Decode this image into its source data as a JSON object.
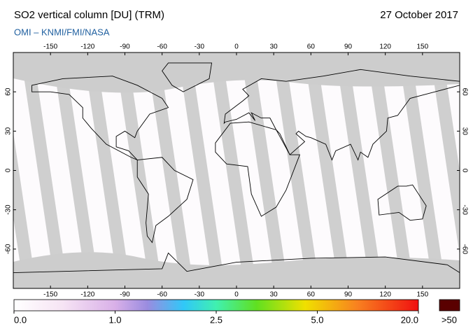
{
  "header": {
    "title": "SO2 vertical column [DU] (TRM)",
    "date": "27 October 2017",
    "source": "OMI  –  KNMI/FMI/NASA"
  },
  "map": {
    "xlim": [
      -180,
      180
    ],
    "ylim": [
      -90,
      90
    ],
    "lon_ticks": [
      -150,
      -120,
      -90,
      -60,
      -30,
      0,
      30,
      60,
      90,
      120,
      150
    ],
    "lat_ticks": [
      60,
      30,
      0,
      -30,
      -60
    ]
  },
  "colorbar": {
    "ticks": [
      {
        "value": 0,
        "label": "0.0"
      },
      {
        "value": 1,
        "label": "1.0"
      },
      {
        "value": 2.5,
        "label": "2.5"
      },
      {
        "value": 5,
        "label": "5.0"
      },
      {
        "value": 20,
        "label": "20.0"
      }
    ],
    "overflow_label": ">50"
  }
}
